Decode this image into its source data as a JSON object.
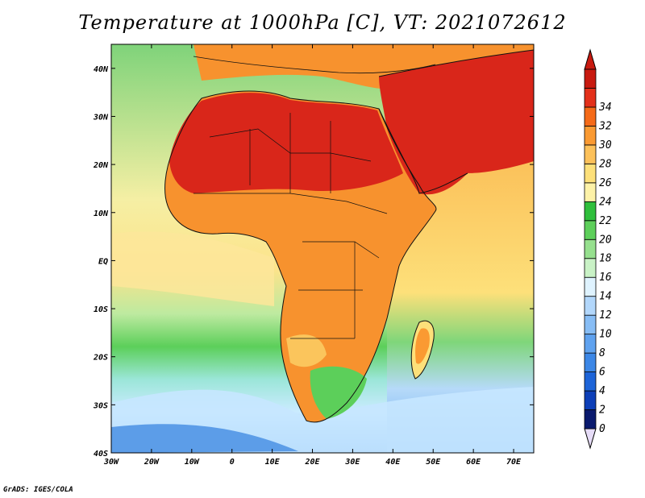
{
  "title": "Temperature at 1000hPa [C], VT: 2021072612",
  "footer": "GrADS: IGES/COLA",
  "map": {
    "projection": "latlon",
    "lon_range": [
      -30,
      75
    ],
    "lat_range": [
      -40,
      45
    ],
    "x_ticks": [
      "30W",
      "20W",
      "10W",
      "0",
      "10E",
      "20E",
      "30E",
      "40E",
      "50E",
      "60E",
      "70E"
    ],
    "y_ticks": [
      "40N",
      "30N",
      "20N",
      "10N",
      "EQ",
      "10S",
      "20S",
      "30S",
      "40S"
    ]
  },
  "colorbar": {
    "levels": [
      "0",
      "2",
      "4",
      "6",
      "8",
      "10",
      "12",
      "14",
      "16",
      "18",
      "20",
      "22",
      "24",
      "26",
      "28",
      "30",
      "32",
      "34"
    ],
    "colors": [
      "#0a1a6e",
      "#0d3fb8",
      "#1d64d8",
      "#3c87e6",
      "#5fa2ef",
      "#87bdf5",
      "#b2d7fb",
      "#dff3ff",
      "#c9f2c6",
      "#96e08e",
      "#5dcf5a",
      "#2fbf3c",
      "#fdf2a8",
      "#fde07a",
      "#fcc15a",
      "#fa9a32",
      "#f56a18",
      "#e3301a",
      "#c81a10"
    ],
    "under_color": "#e6dcf7"
  },
  "colors": {
    "ocean_high_lat": "#a8d1f7",
    "ocean_mid": "#8fdc8a",
    "ocean_warm": "#fde98f",
    "land_hot": "#e0301a",
    "land_warm": "#f7922e",
    "land_mild": "#fbc55c"
  }
}
